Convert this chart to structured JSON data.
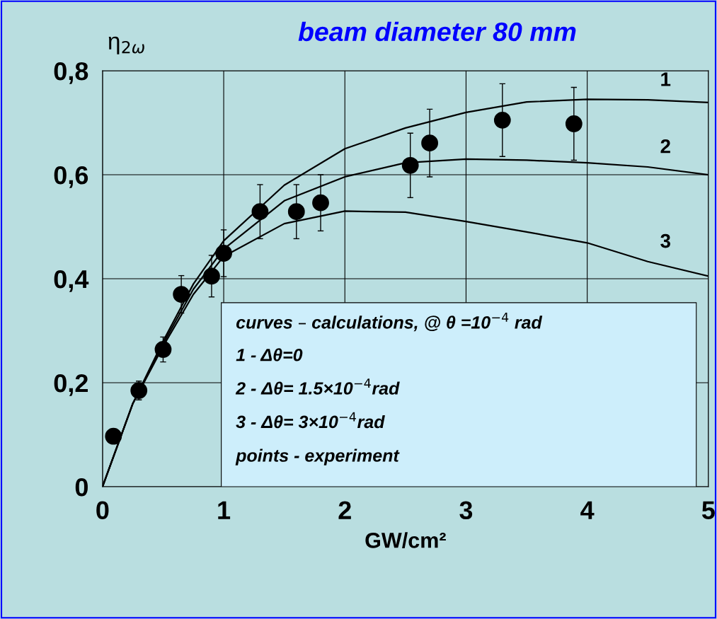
{
  "chart_data": {
    "type": "line",
    "title": "beam diameter 80 mm",
    "xlabel": "GW/cm²",
    "ylabel": "η$_{2ω}$",
    "xlim": [
      0,
      5
    ],
    "xticks": [
      0,
      1,
      2,
      3,
      4,
      5
    ],
    "ylim": [
      0,
      0.8
    ],
    "yticks": [
      {
        "value": 0,
        "label": "0"
      },
      {
        "value": 0.2,
        "label": "0,2"
      },
      {
        "value": 0.4,
        "label": "0,4"
      },
      {
        "value": 0.6,
        "label": "0,6"
      },
      {
        "value": 0.8,
        "label": "0,8"
      }
    ],
    "grid": true,
    "legend": false,
    "series": [
      {
        "name": "1",
        "color": "#000000",
        "marker": "none",
        "x": [
          0,
          0.25,
          0.5,
          0.75,
          1,
          1.5,
          2,
          2.5,
          3,
          3.5,
          4,
          4.5,
          5
        ],
        "values": [
          0,
          0.16,
          0.28,
          0.39,
          0.473,
          0.58,
          0.65,
          0.69,
          0.72,
          0.74,
          0.745,
          0.744,
          0.739
        ]
      },
      {
        "name": "2",
        "color": "#000000",
        "marker": "none",
        "x": [
          0,
          0.25,
          0.5,
          0.75,
          1,
          1.5,
          2,
          2.5,
          3,
          3.5,
          4,
          4.5,
          5
        ],
        "values": [
          0,
          0.16,
          0.275,
          0.38,
          0.457,
          0.55,
          0.596,
          0.623,
          0.63,
          0.628,
          0.623,
          0.615,
          0.6
        ]
      },
      {
        "name": "3",
        "color": "#000000",
        "marker": "none",
        "x": [
          0,
          0.25,
          0.5,
          0.75,
          1,
          1.5,
          2,
          2.5,
          3,
          3.5,
          4,
          4.5,
          5
        ],
        "values": [
          0,
          0.16,
          0.27,
          0.37,
          0.443,
          0.506,
          0.53,
          0.528,
          0.51,
          0.49,
          0.469,
          0.433,
          0.405
        ]
      },
      {
        "type": "scatter",
        "color": "#000000",
        "marker": "circle",
        "x": [
          0.09,
          0.3,
          0.5,
          0.65,
          0.9,
          1.0,
          1.3,
          1.6,
          1.8,
          2.54,
          2.7,
          3.3,
          3.89
        ],
        "values": [
          0.097,
          0.185,
          0.264,
          0.37,
          0.405,
          0.449,
          0.529,
          0.529,
          0.546,
          0.618,
          0.661,
          0.705,
          0.698
        ],
        "errors": [
          null,
          0.018,
          0.024,
          0.036,
          0.04,
          0.045,
          0.052,
          0.052,
          0.054,
          0.062,
          0.065,
          0.07,
          0.07
        ]
      }
    ],
    "annotations": [
      "curves – calculations, @ θ =10$^{−4}$ rad",
      "1 - Δθ=0",
      "2 - Δθ= 1.5×10$^{−4}$rad",
      "3 - Δθ= 3×10$^{−4}$rad",
      "points - experiment"
    ]
  }
}
